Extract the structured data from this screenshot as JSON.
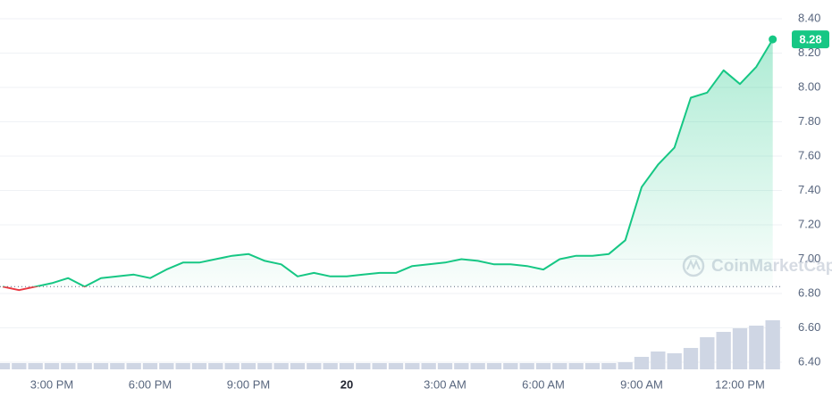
{
  "chart_data": {
    "type": "line",
    "categories": [
      null,
      null,
      null,
      "3:00 PM",
      null,
      null,
      null,
      null,
      null,
      "6:00 PM",
      null,
      null,
      null,
      null,
      null,
      "9:00 PM",
      null,
      null,
      null,
      null,
      null,
      "20",
      null,
      null,
      null,
      null,
      null,
      "3:00 AM",
      null,
      null,
      null,
      null,
      null,
      "6:00 AM",
      null,
      null,
      null,
      null,
      null,
      "9:00 AM",
      null,
      null,
      null,
      null,
      null,
      "12:00 PM",
      null,
      null
    ],
    "series": [
      {
        "name": "Price",
        "color": "#16c784",
        "below_color": "#ea3943",
        "values": [
          6.84,
          6.82,
          6.84,
          6.86,
          6.89,
          6.84,
          6.89,
          6.9,
          6.91,
          6.89,
          6.94,
          6.98,
          6.98,
          7.0,
          7.02,
          7.03,
          6.99,
          6.97,
          6.9,
          6.92,
          6.9,
          6.9,
          6.91,
          6.92,
          6.92,
          6.96,
          6.97,
          6.98,
          7.0,
          6.99,
          6.97,
          6.97,
          6.96,
          6.94,
          7.0,
          7.02,
          7.02,
          7.03,
          7.11,
          7.42,
          7.55,
          7.65,
          7.94,
          7.97,
          8.1,
          8.02,
          8.12,
          8.28
        ]
      }
    ],
    "volume": {
      "name": "Volume",
      "color": "#cfd6e4",
      "values": [
        7,
        7,
        7,
        7,
        7,
        7,
        7,
        7,
        7,
        7,
        7,
        7,
        7,
        7,
        7,
        7,
        7,
        7,
        7,
        7,
        7,
        7,
        7,
        7,
        7,
        7,
        7,
        7,
        7,
        7,
        7,
        7,
        7,
        7,
        7,
        7,
        7,
        7,
        8,
        14,
        20,
        18,
        24,
        36,
        42,
        46,
        49,
        55
      ],
      "vlim": [
        0,
        60
      ]
    },
    "open_price": 6.84,
    "ylim": [
      6.4,
      8.4
    ],
    "yticks": [
      {
        "value": 6.4,
        "label": "6.40"
      },
      {
        "value": 6.6,
        "label": "6.60"
      },
      {
        "value": 6.8,
        "label": "6.80"
      },
      {
        "value": 7.0,
        "label": "7.00"
      },
      {
        "value": 7.2,
        "label": "7.20"
      },
      {
        "value": 7.4,
        "label": "7.40"
      },
      {
        "value": 7.6,
        "label": "7.60"
      },
      {
        "value": 7.8,
        "label": "7.80"
      },
      {
        "value": 8.0,
        "label": "8.00"
      },
      {
        "value": 8.2,
        "label": "8.20"
      },
      {
        "value": 8.4,
        "label": "8.40"
      }
    ],
    "grid": true,
    "watermark": "CoinMarketCap"
  }
}
